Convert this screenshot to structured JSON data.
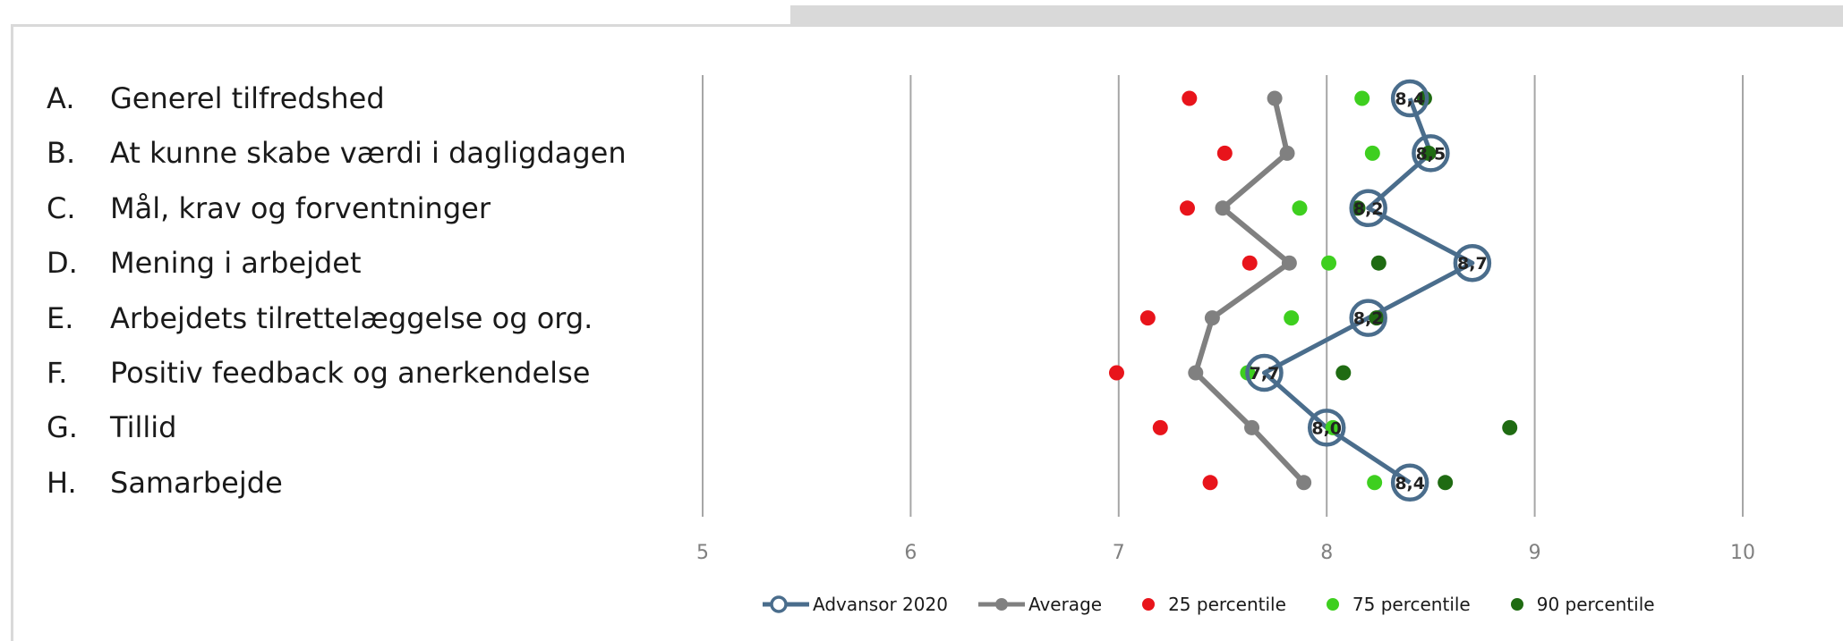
{
  "chart_data": {
    "type": "scatter",
    "categories": [
      {
        "letter": "A.",
        "label": "Generel tilfredshed"
      },
      {
        "letter": "B.",
        "label": "At kunne skabe værdi i dagligdagen"
      },
      {
        "letter": "C.",
        "label": "Mål, krav og forventninger"
      },
      {
        "letter": "D.",
        "label": "Mening i arbejdet"
      },
      {
        "letter": "E.",
        "label": "Arbejdets tilrettelæggelse og org."
      },
      {
        "letter": "F.",
        "label": "Positiv feedback og anerkendelse"
      },
      {
        "letter": "G.",
        "label": "Tillid"
      },
      {
        "letter": "H.",
        "label": "Samarbejde"
      }
    ],
    "xlim": [
      5,
      10
    ],
    "x_ticks": [
      "5",
      "6",
      "7",
      "8",
      "9",
      "10"
    ],
    "series": [
      {
        "name": "Advansor 2020",
        "style": "line-open-marker",
        "color": "#4a6d8c",
        "values": [
          8.4,
          8.5,
          8.2,
          8.7,
          8.2,
          7.7,
          8.0,
          8.4
        ],
        "data_labels": [
          "8,4",
          "8,5",
          "8,2",
          "8,7",
          "8,2",
          "7,7",
          "8,0",
          "8,4"
        ]
      },
      {
        "name": "Average",
        "style": "line-marker",
        "color": "#808080",
        "values": [
          7.75,
          7.81,
          7.5,
          7.82,
          7.45,
          7.37,
          7.64,
          7.89
        ]
      },
      {
        "name": "25 percentile",
        "style": "marker",
        "color": "#e8141b",
        "values": [
          7.34,
          7.51,
          7.33,
          7.63,
          7.14,
          6.99,
          7.2,
          7.44
        ]
      },
      {
        "name": "75 percentile",
        "style": "marker",
        "color": "#3ecf1f",
        "values": [
          8.17,
          8.22,
          7.87,
          8.01,
          7.83,
          7.62,
          8.03,
          8.23
        ]
      },
      {
        "name": "90 percentile",
        "style": "marker",
        "color": "#1f6b12",
        "values": [
          8.47,
          8.49,
          8.15,
          8.25,
          8.24,
          8.08,
          8.88,
          8.57
        ]
      }
    ],
    "grid": true,
    "legend_position": "bottom"
  }
}
